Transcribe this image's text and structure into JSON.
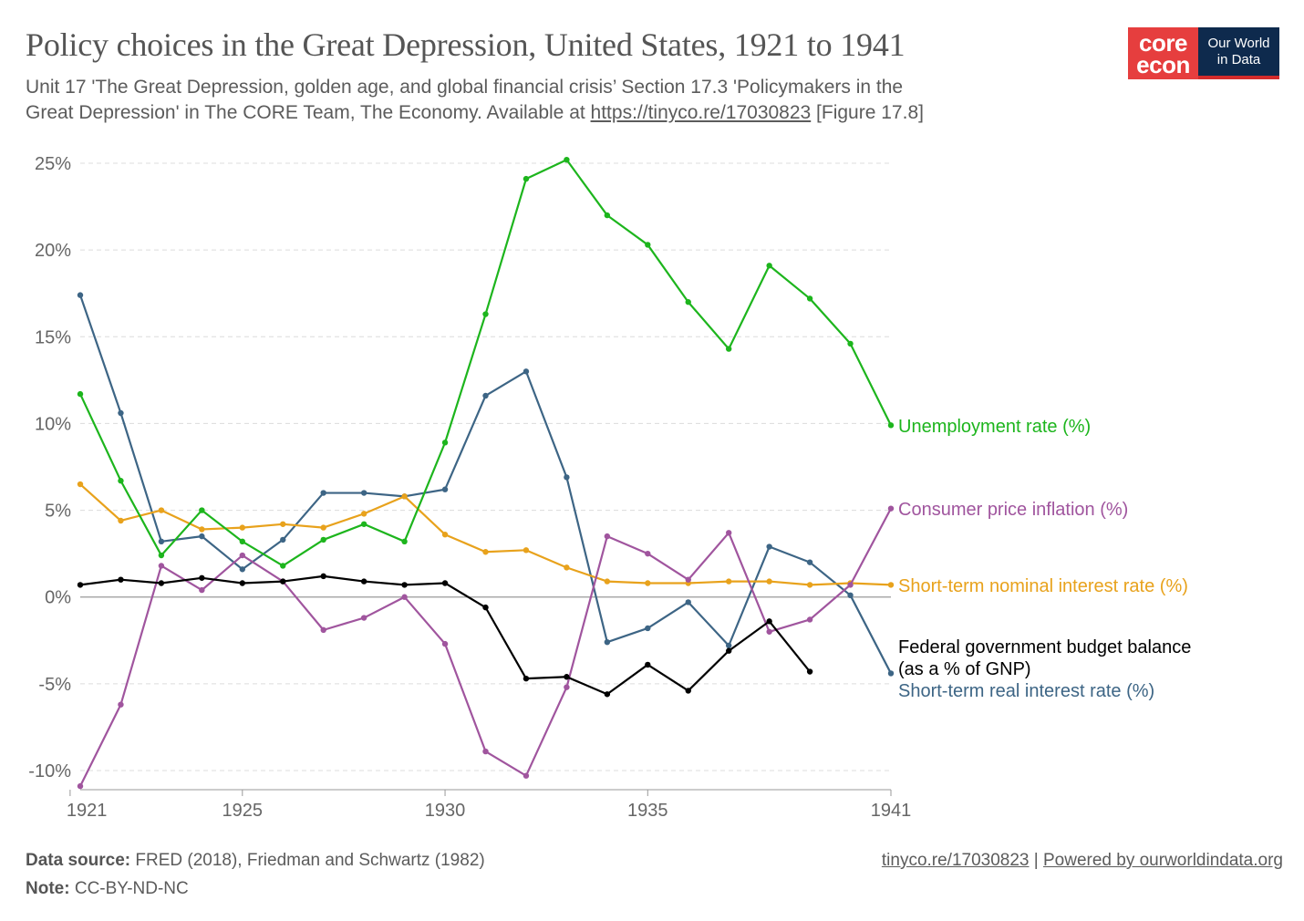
{
  "header": {
    "title": "Policy choices in the Great Depression, United States, 1921 to 1941",
    "subtitle_line1": "Unit 17 'The Great Depression, golden age, and global financial crisis’ Section 17.3 'Policymakers in the",
    "subtitle_line2_prefix": "Great Depression' in The CORE Team, The Economy. Available at ",
    "subtitle_link": "https://tinyco.re/17030823",
    "subtitle_suffix": " [Figure 17.8]"
  },
  "logo": {
    "core_top": "core",
    "core_bottom": "econ",
    "owid_line1": "Our World",
    "owid_line2": "in Data"
  },
  "footer": {
    "source_label": "Data source:",
    "source_text": " FRED (2018), Friedman and Schwartz (1982)",
    "note_label": "Note:",
    "note_text": " CC-BY-ND-NC",
    "link1": "tinyco.re/17030823",
    "separator": " | ",
    "link2": "Powered by ourworldindata.org"
  },
  "chart_data": {
    "type": "line",
    "title": "Policy choices in the Great Depression, United States, 1921 to 1941",
    "xlabel": "",
    "ylabel": "",
    "xlim": [
      1920.75,
      1941
    ],
    "ylim": [
      -11,
      25.5
    ],
    "x_ticks": [
      1920.75,
      1925,
      1930,
      1935,
      1941
    ],
    "x_tick_labels": [
      "1921",
      "1925",
      "1930",
      "1935",
      "1941"
    ],
    "y_ticks": [
      -10,
      -5,
      0,
      5,
      10,
      15,
      20,
      25
    ],
    "y_tick_labels": [
      "-10%",
      "-5%",
      "0%",
      "5%",
      "10%",
      "15%",
      "20%",
      "25%"
    ],
    "grid": true,
    "legend": "right-end labels",
    "x": [
      1921,
      1922,
      1923,
      1924,
      1925,
      1926,
      1927,
      1928,
      1929,
      1930,
      1931,
      1932,
      1933,
      1934,
      1935,
      1936,
      1937,
      1938,
      1939,
      1940,
      1941
    ],
    "series": [
      {
        "name": "Unemployment rate (%)",
        "color": "#1db51d",
        "values": [
          11.7,
          6.7,
          2.4,
          5.0,
          3.2,
          1.8,
          3.3,
          4.2,
          3.2,
          8.9,
          16.3,
          24.1,
          25.2,
          22.0,
          20.3,
          17.0,
          14.3,
          19.1,
          17.2,
          14.6,
          9.9
        ]
      },
      {
        "name": "Consumer price inflation (%)",
        "color": "#a0559e",
        "values": [
          -10.9,
          -6.2,
          1.8,
          0.4,
          2.4,
          0.9,
          -1.9,
          -1.2,
          0.0,
          -2.7,
          -8.9,
          -10.3,
          -5.2,
          3.5,
          2.5,
          1.0,
          3.7,
          -2.0,
          -1.3,
          0.7,
          5.1
        ]
      },
      {
        "name": "Short-term nominal interest rate (%)",
        "color": "#e8a21c",
        "values": [
          6.5,
          4.4,
          5.0,
          3.9,
          4.0,
          4.2,
          4.0,
          4.8,
          5.8,
          3.6,
          2.6,
          2.7,
          1.7,
          0.9,
          0.8,
          0.8,
          0.9,
          0.9,
          0.7,
          0.8,
          0.7
        ]
      },
      {
        "name": "Federal government budget balance",
        "name_line2": "(as a % of GNP)",
        "color": "#000000",
        "values": [
          0.7,
          1.0,
          0.8,
          1.1,
          0.8,
          0.9,
          1.2,
          0.9,
          0.7,
          0.8,
          -0.6,
          -4.7,
          -4.6,
          -5.6,
          -3.9,
          -5.4,
          -3.1,
          -1.4,
          -4.3,
          null,
          null
        ]
      },
      {
        "name": "Short-term real interest rate (%)",
        "color": "#3d6585",
        "values": [
          17.4,
          10.6,
          3.2,
          3.5,
          1.6,
          3.3,
          6.0,
          6.0,
          5.8,
          6.2,
          11.6,
          13.0,
          6.9,
          -2.6,
          -1.8,
          -0.3,
          -2.8,
          2.9,
          2.0,
          0.1,
          -4.4
        ]
      }
    ]
  }
}
